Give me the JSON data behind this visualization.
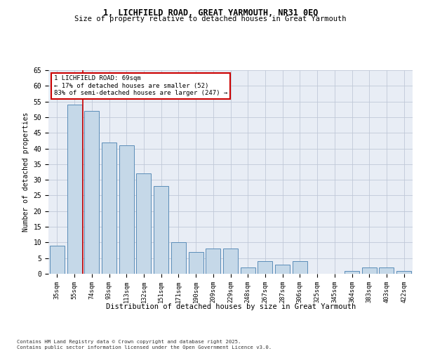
{
  "title1": "1, LICHFIELD ROAD, GREAT YARMOUTH, NR31 0EQ",
  "title2": "Size of property relative to detached houses in Great Yarmouth",
  "xlabel": "Distribution of detached houses by size in Great Yarmouth",
  "ylabel": "Number of detached properties",
  "categories": [
    "35sqm",
    "55sqm",
    "74sqm",
    "93sqm",
    "113sqm",
    "132sqm",
    "151sqm",
    "171sqm",
    "190sqm",
    "209sqm",
    "229sqm",
    "248sqm",
    "267sqm",
    "287sqm",
    "306sqm",
    "325sqm",
    "345sqm",
    "364sqm",
    "383sqm",
    "403sqm",
    "422sqm"
  ],
  "values": [
    9,
    54,
    52,
    42,
    41,
    32,
    28,
    10,
    7,
    8,
    8,
    2,
    4,
    3,
    4,
    0,
    0,
    1,
    2,
    2,
    1
  ],
  "bar_color": "#c5d8e8",
  "bar_edge_color": "#5b8db8",
  "grid_color": "#c0c8d8",
  "background_color": "#e8edf5",
  "annotation_text_line1": "1 LICHFIELD ROAD: 69sqm",
  "annotation_text_line2": "← 17% of detached houses are smaller (52)",
  "annotation_text_line3": "83% of semi-detached houses are larger (247) →",
  "annotation_box_color": "#ffffff",
  "annotation_box_edge": "#cc0000",
  "red_line_color": "#cc0000",
  "red_line_x": 1.5,
  "ylim": [
    0,
    65
  ],
  "yticks": [
    0,
    5,
    10,
    15,
    20,
    25,
    30,
    35,
    40,
    45,
    50,
    55,
    60,
    65
  ],
  "footer1": "Contains HM Land Registry data © Crown copyright and database right 2025.",
  "footer2": "Contains public sector information licensed under the Open Government Licence v3.0."
}
